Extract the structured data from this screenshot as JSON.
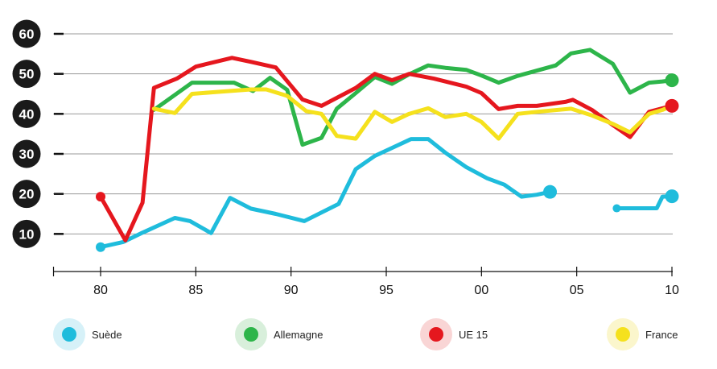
{
  "chart_data": {
    "type": "line",
    "title": "",
    "xlabel": "",
    "ylabel": "",
    "x_ticks": [
      1980,
      1985,
      1990,
      1995,
      2000,
      2005,
      2010
    ],
    "x_tick_labels": [
      "80",
      "85",
      "90",
      "95",
      "00",
      "05",
      "10"
    ],
    "y_ticks": [
      10,
      20,
      30,
      40,
      50,
      60
    ],
    "y_tick_labels": [
      "10",
      "20",
      "30",
      "40",
      "50",
      "60"
    ],
    "xlim": [
      1977.6,
      2010
    ],
    "ylim": [
      0,
      60
    ],
    "grid": true,
    "legend_position": "bottom",
    "series": [
      {
        "name": "Suède",
        "color": "#1fbcdc",
        "halo": "#d6f1f8",
        "segments": [
          [
            [
              1980,
              6.7
            ],
            [
              1981.2,
              8.0
            ],
            [
              1982.2,
              10.3
            ],
            [
              1983.9,
              14.0
            ],
            [
              1984.7,
              13.2
            ],
            [
              1985.8,
              10.2
            ],
            [
              1986.8,
              19.0
            ],
            [
              1987.9,
              16.3
            ],
            [
              1989.2,
              15.0
            ],
            [
              1990.7,
              13.2
            ],
            [
              1992.5,
              17.5
            ],
            [
              1993.4,
              26.2
            ],
            [
              1994.4,
              29.5
            ],
            [
              1995.3,
              31.5
            ],
            [
              1996.3,
              33.7
            ],
            [
              1997.2,
              33.7
            ],
            [
              1998.1,
              30.3
            ],
            [
              1999.2,
              26.7
            ],
            [
              2000.3,
              23.9
            ],
            [
              2001.2,
              22.3
            ],
            [
              2002.1,
              19.3
            ],
            [
              2002.9,
              19.8
            ],
            [
              2003.6,
              20.5
            ]
          ],
          [
            [
              2007.1,
              16.4
            ],
            [
              2007.8,
              16.4
            ],
            [
              2009.2,
              16.4
            ],
            [
              2009.5,
              19.3
            ],
            [
              2010,
              19.4
            ]
          ]
        ]
      },
      {
        "name": "Allemagne",
        "color": "#2db54a",
        "halo": "#d8efdb",
        "segments": [
          [
            [
              1982.8,
              41.0
            ],
            [
              1984.8,
              47.8
            ],
            [
              1985.9,
              47.8
            ],
            [
              1987.0,
              47.8
            ],
            [
              1988.0,
              45.7
            ],
            [
              1988.9,
              49.0
            ],
            [
              1989.8,
              46.0
            ],
            [
              1990.6,
              32.3
            ],
            [
              1991.6,
              34.0
            ],
            [
              1992.4,
              41.3
            ],
            [
              1993.4,
              45.2
            ],
            [
              1994.4,
              49.2
            ],
            [
              1995.3,
              47.5
            ],
            [
              1996.2,
              49.9
            ],
            [
              1997.2,
              52.1
            ],
            [
              1998.1,
              51.5
            ],
            [
              1999.2,
              51.0
            ],
            [
              2000.0,
              49.6
            ],
            [
              2000.9,
              47.8
            ],
            [
              2001.9,
              49.5
            ],
            [
              2003.9,
              52.1
            ],
            [
              2004.7,
              55.1
            ],
            [
              2005.7,
              56.0
            ],
            [
              2006.9,
              52.5
            ],
            [
              2007.8,
              45.3
            ],
            [
              2008.8,
              47.8
            ],
            [
              2009.5,
              48.1
            ],
            [
              2010,
              48.4
            ]
          ]
        ]
      },
      {
        "name": "UE 15",
        "color": "#e5171e",
        "halo": "#f9d5d5",
        "segments": [
          [
            [
              1980,
              19.3
            ],
            [
              1981.3,
              8.4
            ],
            [
              1982.2,
              17.8
            ],
            [
              1982.8,
              46.5
            ],
            [
              1984.0,
              48.8
            ],
            [
              1985.0,
              51.8
            ],
            [
              1986.9,
              54.0
            ],
            [
              1987.9,
              53.0
            ],
            [
              1989.2,
              51.6
            ],
            [
              1990.6,
              43.6
            ],
            [
              1991.6,
              42.0
            ],
            [
              1993.4,
              46.5
            ],
            [
              1994.4,
              50.0
            ],
            [
              1995.3,
              48.4
            ],
            [
              1996.2,
              50.0
            ],
            [
              1997.5,
              48.8
            ],
            [
              1999.2,
              46.8
            ],
            [
              2000.0,
              45.2
            ],
            [
              2000.9,
              41.2
            ],
            [
              2001.9,
              42.0
            ],
            [
              2002.9,
              42.0
            ],
            [
              2004.4,
              43.0
            ],
            [
              2004.8,
              43.5
            ],
            [
              2005.8,
              41.0
            ],
            [
              2006.9,
              37.2
            ],
            [
              2007.8,
              34.2
            ],
            [
              2008.8,
              40.5
            ],
            [
              2009.5,
              41.4
            ],
            [
              2010,
              42.0
            ]
          ]
        ]
      },
      {
        "name": "France",
        "color": "#f5e11d",
        "halo": "#fbf6cc",
        "segments": [
          [
            [
              1982.8,
              41.3
            ],
            [
              1983.9,
              40.2
            ],
            [
              1984.8,
              45.0
            ],
            [
              1985.9,
              45.4
            ],
            [
              1987.9,
              46.1
            ],
            [
              1988.7,
              46.1
            ],
            [
              1989.8,
              44.5
            ],
            [
              1990.8,
              40.7
            ],
            [
              1991.6,
              40.0
            ],
            [
              1992.4,
              34.5
            ],
            [
              1993.4,
              33.8
            ],
            [
              1994.4,
              40.5
            ],
            [
              1995.3,
              38.0
            ],
            [
              1996.2,
              40.0
            ],
            [
              1997.2,
              41.4
            ],
            [
              1998.1,
              39.2
            ],
            [
              1999.2,
              40.0
            ],
            [
              2000.0,
              38.0
            ],
            [
              2000.9,
              33.8
            ],
            [
              2001.9,
              40.0
            ],
            [
              2002.9,
              40.5
            ],
            [
              2004.7,
              41.3
            ],
            [
              2005.8,
              39.6
            ],
            [
              2006.9,
              37.5
            ],
            [
              2007.8,
              35.4
            ],
            [
              2008.8,
              40.0
            ],
            [
              2009.5,
              41.0
            ],
            [
              2010,
              42.0
            ]
          ]
        ]
      }
    ]
  }
}
